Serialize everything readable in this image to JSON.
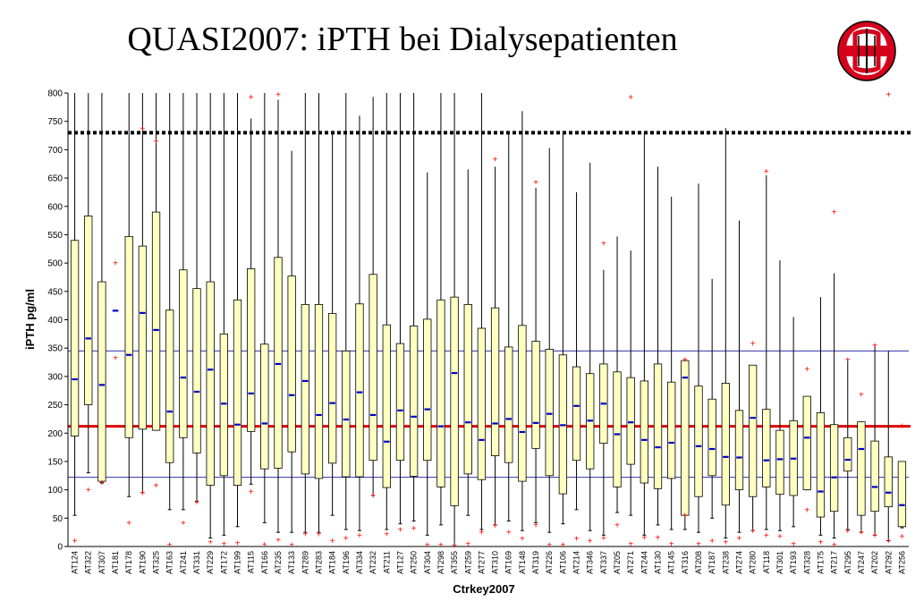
{
  "slide": {
    "title": "QUASI2007: iPTH bei Dialysepatienten"
  },
  "logo": {
    "icon": "shield-logo-icon",
    "colors": {
      "red": "#d6001c",
      "white": "#ffffff",
      "black": "#000000"
    }
  },
  "chart_data": {
    "type": "boxplot",
    "title": "",
    "xlabel": "Ctrkey2007",
    "ylabel": "iPTH pg/ml",
    "ylim": [
      0,
      800
    ],
    "yticks": [
      0,
      50,
      100,
      150,
      200,
      250,
      300,
      350,
      400,
      450,
      500,
      550,
      600,
      650,
      700,
      750,
      800
    ],
    "reference_lines": [
      {
        "value": 730,
        "color": "#000000",
        "style": "dotted"
      },
      {
        "value": 345,
        "color": "#3333aa",
        "style": "solid"
      },
      {
        "value": 212,
        "color": "#e00000",
        "style": "solid"
      },
      {
        "value": 122,
        "color": "#3333aa",
        "style": "solid"
      }
    ],
    "colors": {
      "box_fill": "#ffffc0",
      "median": "#0000cc",
      "outlier": "#ff0000",
      "whisker": "#000000"
    },
    "categories": [
      "AT124",
      "AT322",
      "AT307",
      "AT181",
      "AT178",
      "AT190",
      "AT325",
      "AT163",
      "AT241",
      "AT331",
      "AT229",
      "AT172",
      "AT199",
      "AT115",
      "AT166",
      "AT235",
      "AT133",
      "AT289",
      "AT283",
      "AT184",
      "AT196",
      "AT334",
      "AT232",
      "AT211",
      "AT127",
      "AT250",
      "AT304",
      "AT298",
      "AT355",
      "AT259",
      "AT277",
      "AT310",
      "AT169",
      "AT148",
      "AT319",
      "AT226",
      "AT106",
      "AT214",
      "AT346",
      "AT337",
      "AT205",
      "AT271",
      "AT244",
      "AT130",
      "AT145",
      "AT316",
      "AT208",
      "AT187",
      "AT238",
      "AT274",
      "AT280",
      "AT118",
      "AT301",
      "AT193",
      "AT328",
      "AT175",
      "AT217",
      "AT295",
      "AT247",
      "AT202",
      "AT292",
      "AT256"
    ],
    "boxes": [
      {
        "wl": 55,
        "q1": 195,
        "med": 295,
        "q3": 540,
        "wh": 800,
        "out": [
          10
        ]
      },
      {
        "wl": 130,
        "q1": 250,
        "med": 367,
        "q3": 583,
        "wh": 800,
        "out": [
          100
        ]
      },
      {
        "wl": 112,
        "q1": 115,
        "med": 285,
        "q3": 467,
        "wh": 800,
        "out": [
          113
        ]
      },
      {
        "wl": null,
        "q1": null,
        "med": 416,
        "q3": null,
        "wh": null,
        "out": [
          500,
          333
        ]
      },
      {
        "wl": 88,
        "q1": 192,
        "med": 338,
        "q3": 547,
        "wh": 800,
        "out": [
          42
        ]
      },
      {
        "wl": 95,
        "q1": 207,
        "med": 412,
        "q3": 530,
        "wh": 800,
        "out": [
          738,
          95
        ]
      },
      {
        "wl": 205,
        "q1": 205,
        "med": 382,
        "q3": 590,
        "wh": 800,
        "out": [
          715,
          108
        ]
      },
      {
        "wl": 65,
        "q1": 148,
        "med": 238,
        "q3": 417,
        "wh": 800,
        "out": [
          3
        ]
      },
      {
        "wl": 65,
        "q1": 192,
        "med": 298,
        "q3": 488,
        "wh": 800,
        "out": [
          42
        ]
      },
      {
        "wl": 80,
        "q1": 165,
        "med": 273,
        "q3": 455,
        "wh": 800,
        "out": [
          78
        ]
      },
      {
        "wl": 15,
        "q1": 108,
        "med": 312,
        "q3": 467,
        "wh": 800,
        "out": [
          8
        ]
      },
      {
        "wl": 20,
        "q1": 125,
        "med": 252,
        "q3": 375,
        "wh": 800,
        "out": [
          5
        ]
      },
      {
        "wl": 35,
        "q1": 108,
        "med": 215,
        "q3": 435,
        "wh": 800,
        "out": [
          6
        ]
      },
      {
        "wl": 110,
        "q1": 203,
        "med": 270,
        "q3": 490,
        "wh": 755,
        "out": [
          793,
          97
        ]
      },
      {
        "wl": 42,
        "q1": 137,
        "med": 217,
        "q3": 357,
        "wh": 800,
        "out": [
          4
        ]
      },
      {
        "wl": 25,
        "q1": 138,
        "med": 322,
        "q3": 510,
        "wh": 788,
        "out": [
          798,
          12
        ]
      },
      {
        "wl": 25,
        "q1": 167,
        "med": 267,
        "q3": 477,
        "wh": 698,
        "out": [
          3
        ]
      },
      {
        "wl": 25,
        "q1": 128,
        "med": 292,
        "q3": 427,
        "wh": 800,
        "out": [
          22
        ]
      },
      {
        "wl": 25,
        "q1": 120,
        "med": 232,
        "q3": 427,
        "wh": 800,
        "out": [
          22
        ]
      },
      {
        "wl": 55,
        "q1": 147,
        "med": 253,
        "q3": 411,
        "wh": 730,
        "out": [
          10
        ]
      },
      {
        "wl": 30,
        "q1": 123,
        "med": 224,
        "q3": 345,
        "wh": 800,
        "out": [
          15
        ]
      },
      {
        "wl": 28,
        "q1": 123,
        "med": 272,
        "q3": 428,
        "wh": 760,
        "out": [
          20
        ]
      },
      {
        "wl": 90,
        "q1": 152,
        "med": 232,
        "q3": 480,
        "wh": 793,
        "out": [
          90
        ]
      },
      {
        "wl": 30,
        "q1": 104,
        "med": 185,
        "q3": 391,
        "wh": 800,
        "out": [
          22
        ]
      },
      {
        "wl": 40,
        "q1": 152,
        "med": 240,
        "q3": 358,
        "wh": 800,
        "out": [
          30
        ]
      },
      {
        "wl": 45,
        "q1": 124,
        "med": 229,
        "q3": 389,
        "wh": 800,
        "out": [
          32
        ]
      },
      {
        "wl": 20,
        "q1": 152,
        "med": 242,
        "q3": 401,
        "wh": 660,
        "out": [
          3
        ]
      },
      {
        "wl": 38,
        "q1": 105,
        "med": 212,
        "q3": 435,
        "wh": 800,
        "out": [
          3
        ]
      },
      {
        "wl": 0,
        "q1": 72,
        "med": 306,
        "q3": 440,
        "wh": 800,
        "out": [
          2
        ]
      },
      {
        "wl": 55,
        "q1": 128,
        "med": 219,
        "q3": 427,
        "wh": 665,
        "out": [
          5
        ]
      },
      {
        "wl": 30,
        "q1": 118,
        "med": 188,
        "q3": 385,
        "wh": 800,
        "out": [
          25
        ]
      },
      {
        "wl": 38,
        "q1": 160,
        "med": 217,
        "q3": 421,
        "wh": 670,
        "out": [
          683,
          37
        ]
      },
      {
        "wl": 45,
        "q1": 148,
        "med": 225,
        "q3": 352,
        "wh": 730,
        "out": [
          25
        ]
      },
      {
        "wl": 28,
        "q1": 115,
        "med": 202,
        "q3": 390,
        "wh": 768,
        "out": [
          14
        ]
      },
      {
        "wl": 42,
        "q1": 173,
        "med": 218,
        "q3": 362,
        "wh": 633,
        "out": [
          643,
          38
        ]
      },
      {
        "wl": 25,
        "q1": 125,
        "med": 234,
        "q3": 348,
        "wh": 703,
        "out": [
          3
        ]
      },
      {
        "wl": 40,
        "q1": 93,
        "med": 214,
        "q3": 338,
        "wh": 733,
        "out": [
          3
        ]
      },
      {
        "wl": 65,
        "q1": 152,
        "med": 248,
        "q3": 317,
        "wh": 625,
        "out": [
          14
        ]
      },
      {
        "wl": 28,
        "q1": 137,
        "med": 222,
        "q3": 305,
        "wh": 677,
        "out": [
          10
        ]
      },
      {
        "wl": 20,
        "q1": 182,
        "med": 252,
        "q3": 322,
        "wh": 488,
        "out": [
          535,
          15
        ]
      },
      {
        "wl": 60,
        "q1": 105,
        "med": 198,
        "q3": 308,
        "wh": 547,
        "out": [
          38
        ]
      },
      {
        "wl": 55,
        "q1": 145,
        "med": 219,
        "q3": 298,
        "wh": 522,
        "out": [
          793,
          5
        ]
      },
      {
        "wl": 20,
        "q1": 112,
        "med": 188,
        "q3": 292,
        "wh": 730,
        "out": [
          16
        ]
      },
      {
        "wl": 38,
        "q1": 102,
        "med": 175,
        "q3": 322,
        "wh": 670,
        "out": [
          16
        ]
      },
      {
        "wl": 30,
        "q1": 120,
        "med": 183,
        "q3": 290,
        "wh": 617,
        "out": [
          5
        ]
      },
      {
        "wl": 30,
        "q1": 55,
        "med": 298,
        "q3": 328,
        "wh": 330,
        "out": [
          330,
          55
        ]
      },
      {
        "wl": 25,
        "q1": 88,
        "med": 177,
        "q3": 283,
        "wh": 640,
        "out": [
          5
        ]
      },
      {
        "wl": 50,
        "q1": 125,
        "med": 172,
        "q3": 260,
        "wh": 472,
        "out": [
          10
        ]
      },
      {
        "wl": 15,
        "q1": 73,
        "med": 158,
        "q3": 288,
        "wh": 738,
        "out": [
          8
        ]
      },
      {
        "wl": 25,
        "q1": 100,
        "med": 157,
        "q3": 240,
        "wh": 575,
        "out": [
          15
        ]
      },
      {
        "wl": 28,
        "q1": 88,
        "med": 227,
        "q3": 320,
        "wh": 320,
        "out": [
          358,
          28
        ]
      },
      {
        "wl": 30,
        "q1": 105,
        "med": 152,
        "q3": 242,
        "wh": 655,
        "out": [
          662,
          20
        ]
      },
      {
        "wl": 28,
        "q1": 92,
        "med": 154,
        "q3": 205,
        "wh": 505,
        "out": [
          18
        ]
      },
      {
        "wl": 35,
        "q1": 90,
        "med": 155,
        "q3": 222,
        "wh": 405,
        "out": [
          5
        ]
      },
      {
        "wl": 100,
        "q1": 100,
        "med": 192,
        "q3": 265,
        "wh": 265,
        "out": [
          313,
          65
        ]
      },
      {
        "wl": 20,
        "q1": 52,
        "med": 97,
        "q3": 236,
        "wh": 440,
        "out": [
          8
        ]
      },
      {
        "wl": 15,
        "q1": 62,
        "med": 122,
        "q3": 215,
        "wh": 482,
        "out": [
          590,
          3
        ]
      },
      {
        "wl": 30,
        "q1": 133,
        "med": 153,
        "q3": 192,
        "wh": 330,
        "out": [
          330,
          28
        ]
      },
      {
        "wl": 25,
        "q1": 55,
        "med": 172,
        "q3": 220,
        "wh": 220,
        "out": [
          268,
          25
        ]
      },
      {
        "wl": 20,
        "q1": 62,
        "med": 105,
        "q3": 186,
        "wh": 355,
        "out": [
          355,
          20
        ]
      },
      {
        "wl": 10,
        "q1": 70,
        "med": 95,
        "q3": 158,
        "wh": 345,
        "out": [
          798,
          10
        ]
      },
      {
        "wl": 33,
        "q1": 35,
        "med": 73,
        "q3": 150,
        "wh": 150,
        "out": [
          213,
          18
        ]
      }
    ]
  }
}
